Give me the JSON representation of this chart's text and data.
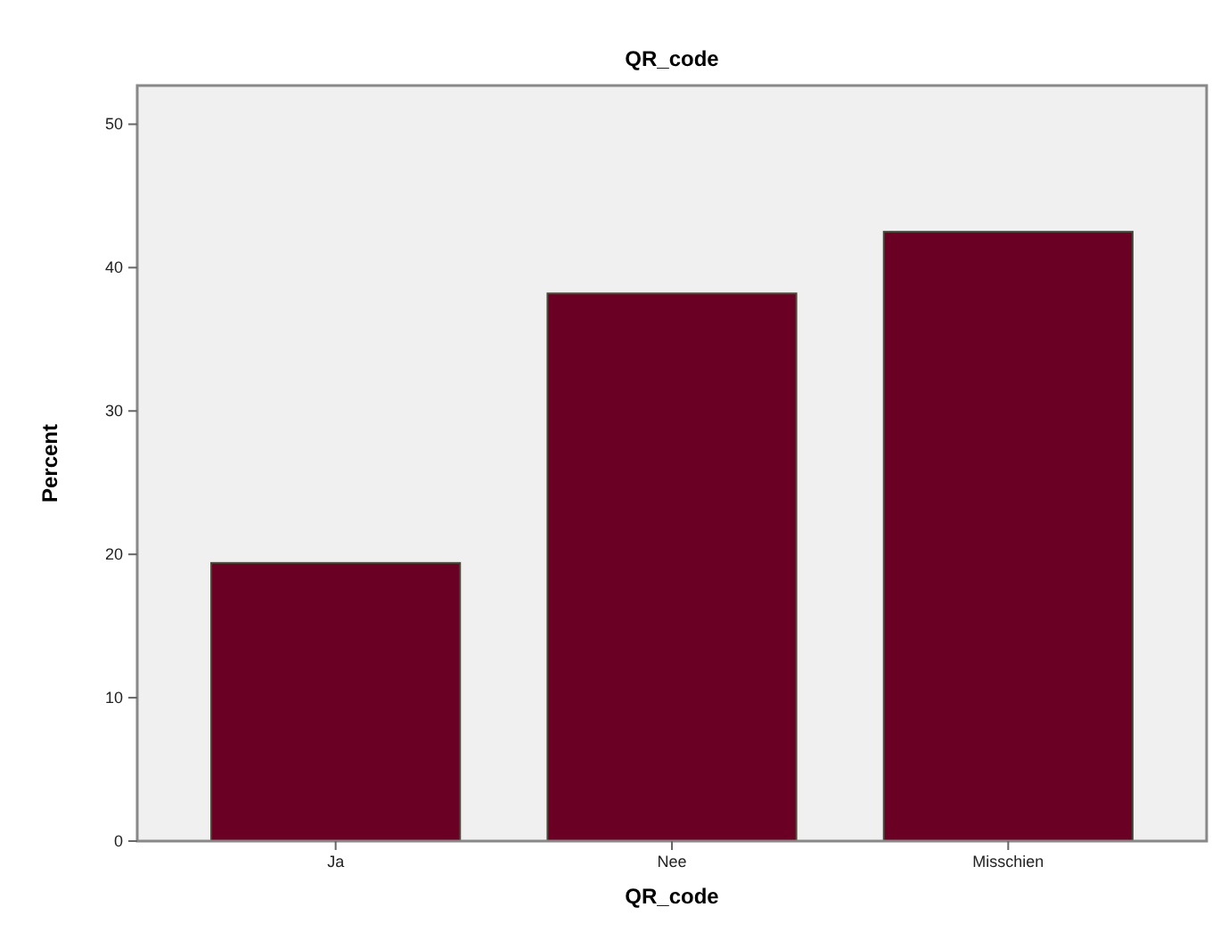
{
  "chart_data": {
    "type": "bar",
    "title": "QR_code",
    "xlabel": "QR_code",
    "ylabel": "Percent",
    "categories": [
      "Ja",
      "Nee",
      "Misschien"
    ],
    "values": [
      19.4,
      38.2,
      42.5
    ],
    "color": "#6a0023",
    "ylim": [
      0,
      52.7
    ],
    "yticks": [
      0,
      10,
      20,
      30,
      40,
      50
    ],
    "grid": false
  }
}
